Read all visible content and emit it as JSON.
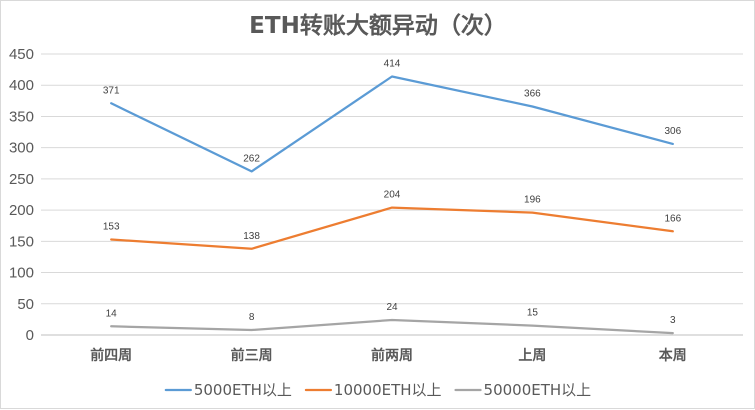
{
  "chart_data": {
    "type": "line",
    "title": "ETH转账大额异动（次）",
    "categories": [
      "前四周",
      "前三周",
      "前两周",
      "上周",
      "本周"
    ],
    "series": [
      {
        "name": "5000ETH以上",
        "color": "#5b9bd5",
        "values": [
          371,
          262,
          414,
          366,
          306
        ]
      },
      {
        "name": "10000ETH以上",
        "color": "#ed7d31",
        "values": [
          153,
          138,
          204,
          196,
          166
        ]
      },
      {
        "name": "50000ETH以上",
        "color": "#a5a5a5",
        "values": [
          14,
          8,
          24,
          15,
          3
        ]
      }
    ],
    "ylim": [
      0,
      450
    ],
    "yticks": [
      0,
      50,
      100,
      150,
      200,
      250,
      300,
      350,
      400,
      450
    ],
    "grid": true,
    "legend": "bottom",
    "data_labels": true
  }
}
